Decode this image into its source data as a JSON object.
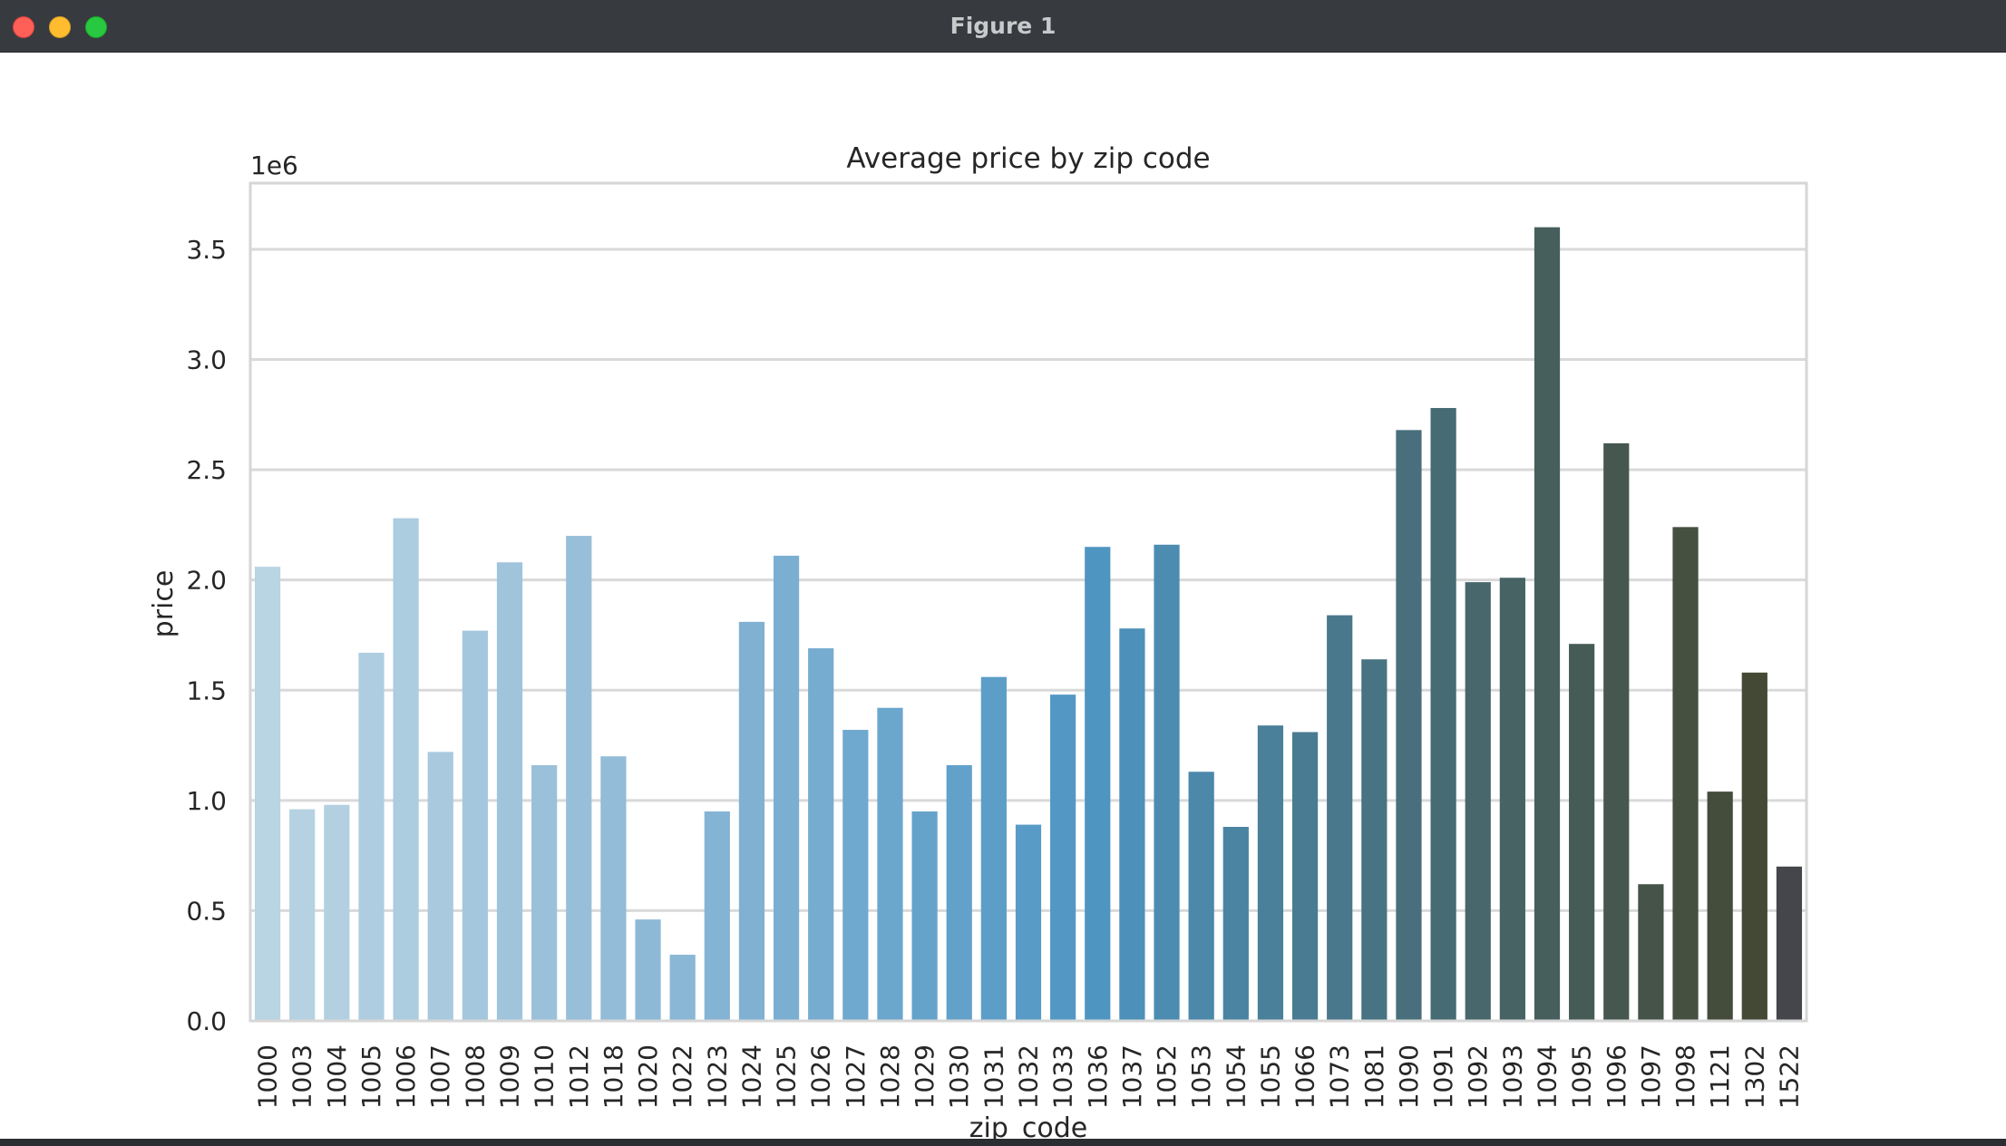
{
  "window": {
    "title": "Figure 1"
  },
  "chart_data": {
    "type": "bar",
    "title": "Average price by zip code",
    "xlabel": "zip_code",
    "ylabel": "price",
    "y_scale_label": "1e6",
    "ylim": [
      0,
      3.8
    ],
    "yticks": [
      "0.0",
      "0.5",
      "1.0",
      "1.5",
      "2.0",
      "2.5",
      "3.0",
      "3.5"
    ],
    "grid": "horizontal",
    "palette": "Blues_d",
    "categories": [
      "1000",
      "1003",
      "1004",
      "1005",
      "1006",
      "1007",
      "1008",
      "1009",
      "1010",
      "1012",
      "1018",
      "1020",
      "1022",
      "1023",
      "1024",
      "1025",
      "1026",
      "1027",
      "1028",
      "1029",
      "1030",
      "1031",
      "1032",
      "1033",
      "1036",
      "1037",
      "1052",
      "1053",
      "1054",
      "1055",
      "1066",
      "1073",
      "1081",
      "1090",
      "1091",
      "1092",
      "1093",
      "1094",
      "1095",
      "1096",
      "1097",
      "1098",
      "1121",
      "1302",
      "1522"
    ],
    "values": [
      2.06,
      0.96,
      0.98,
      1.67,
      2.28,
      1.22,
      1.77,
      2.08,
      1.16,
      2.2,
      1.2,
      0.46,
      0.3,
      0.95,
      1.81,
      2.11,
      1.69,
      1.32,
      1.42,
      0.95,
      1.16,
      1.56,
      0.89,
      1.48,
      2.15,
      1.78,
      2.16,
      1.13,
      0.88,
      1.34,
      1.31,
      1.84,
      1.64,
      2.68,
      2.78,
      1.99,
      2.01,
      3.6,
      1.71,
      2.62,
      0.62,
      2.24,
      1.04,
      1.58,
      0.7
    ],
    "colors": [
      "#b9d4e3",
      "#b6d2e2",
      "#b3d0e1",
      "#afcde0",
      "#acccdf",
      "#a8c9de",
      "#a4c7dd",
      "#a0c4dc",
      "#9bc1da",
      "#97bfd9",
      "#92bcd8",
      "#8db9d6",
      "#89b7d5",
      "#84b4d4",
      "#80b1d3",
      "#7bafd2",
      "#76acd0",
      "#70a9cf",
      "#6ba6cd",
      "#66a3cb",
      "#62a1ca",
      "#5d9ec8",
      "#589bc6",
      "#5398c4",
      "#4f95c1",
      "#4d90b9",
      "#4c8cb1",
      "#4b88aa",
      "#4a84a2",
      "#4a809a",
      "#497b92",
      "#49778b",
      "#487383",
      "#486f7b",
      "#476b73",
      "#47676c",
      "#476364",
      "#465f5d",
      "#465b56",
      "#45574f",
      "#455348",
      "#455041",
      "#444c3b",
      "#444935",
      "#44464b"
    ]
  }
}
